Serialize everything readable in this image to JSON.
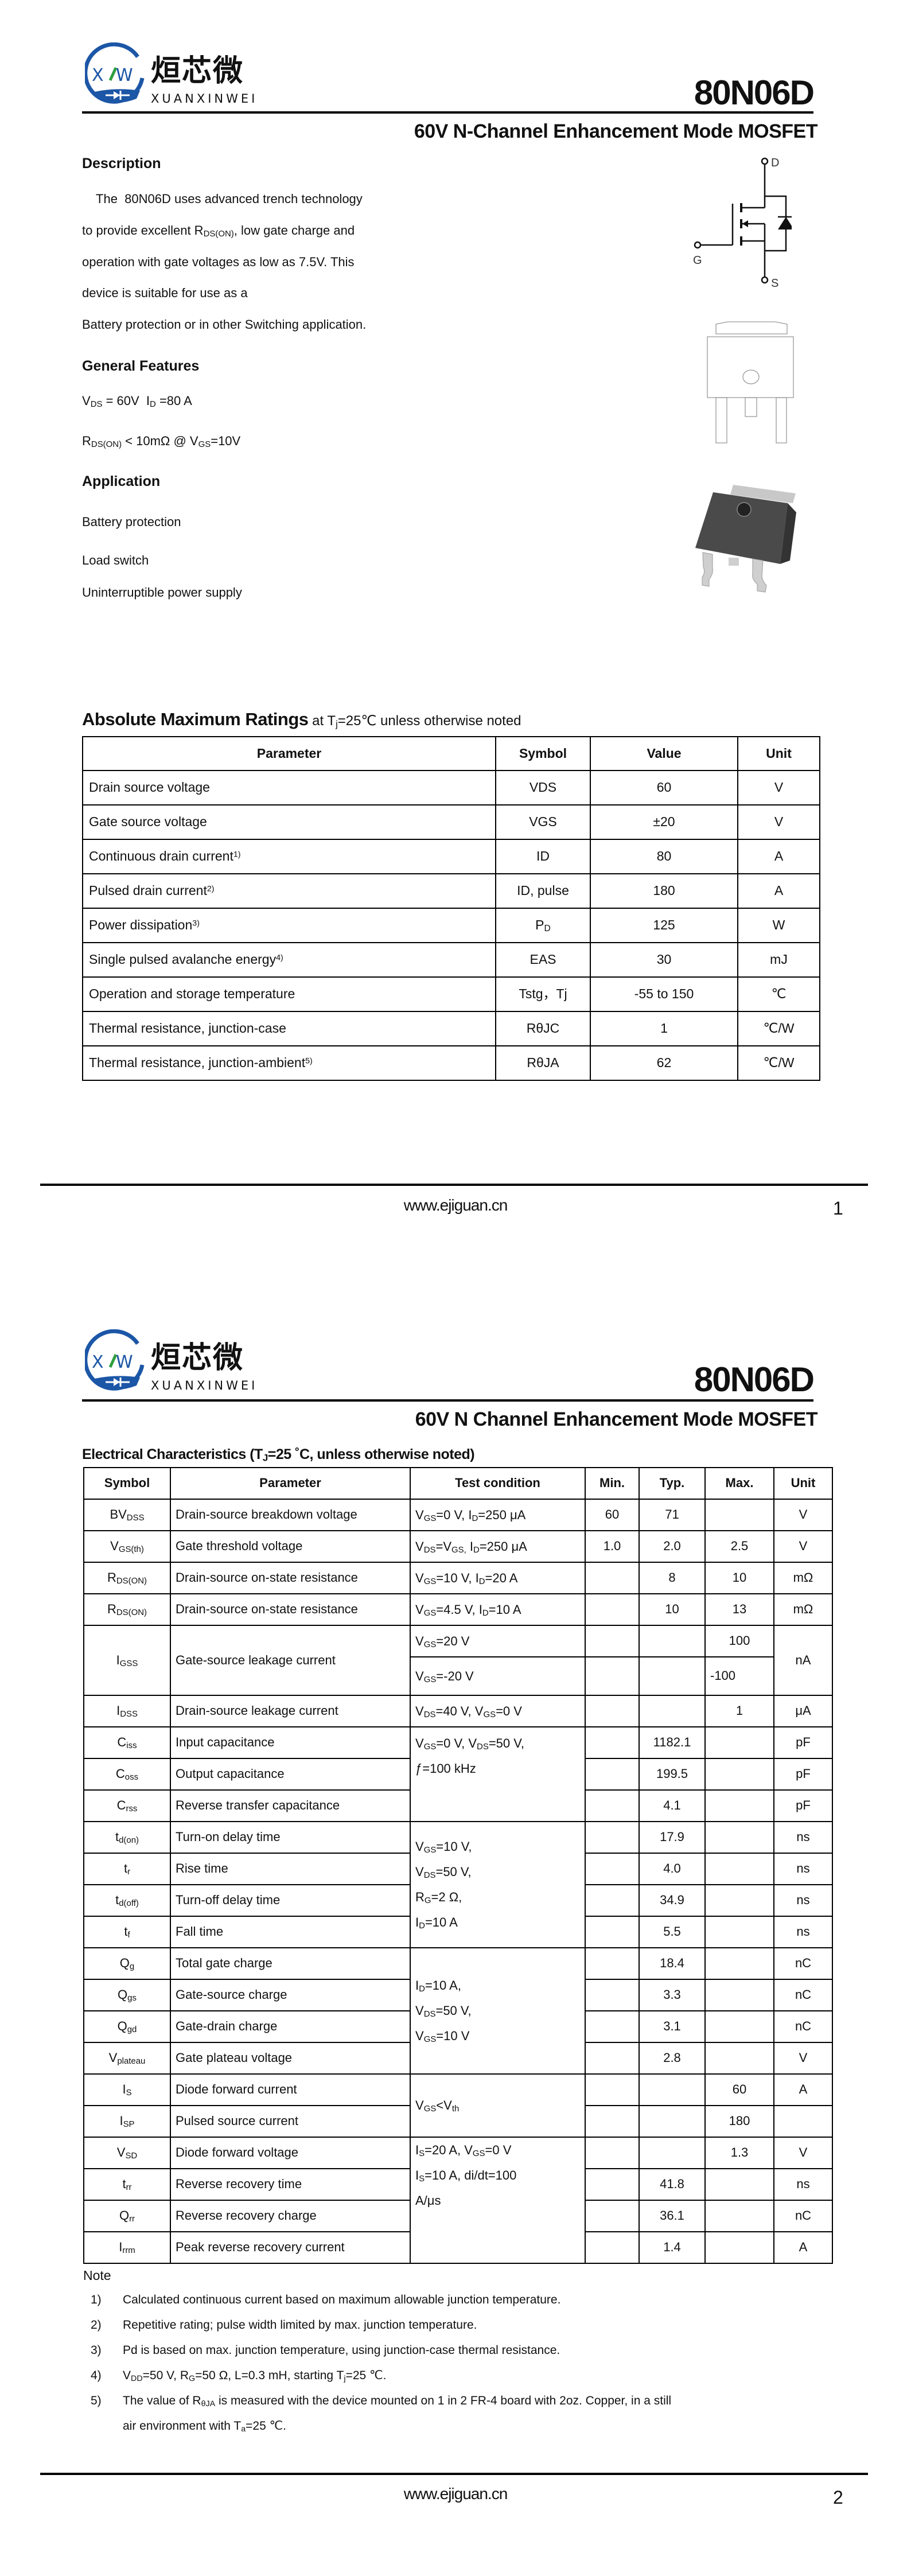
{
  "brand": {
    "logo_text_cn": "烜芯微",
    "logo_text_en": "XUANXINWEI",
    "logo_letters": "XW",
    "logo_blue": "#1c56a6",
    "logo_green": "#2f9e3e"
  },
  "pages": [
    {
      "part_number": "80N06D",
      "subtitle": "60V N-Channel Enhancement Mode MOSFET",
      "footer_url": "www.ejiguan.cn",
      "page_number": "1"
    },
    {
      "part_number": "80N06D",
      "subtitle": "60V N Channel Enhancement Mode MOSFET",
      "footer_url": "www.ejiguan.cn",
      "page_number": "2"
    }
  ],
  "description": {
    "heading": "Description",
    "lines": [
      [
        "    The  80N06D uses advanced trench technology"
      ],
      [
        "to provide excellent R",
        {
          "sub": "DS(ON)"
        },
        ", low gate charge and"
      ],
      [
        "operation with gate voltages as low as 7.5V. This"
      ],
      [
        "device is suitable for use as a"
      ],
      [
        "Battery protection or in other Switching application."
      ]
    ]
  },
  "features": {
    "heading": "General Features",
    "lines": [
      [
        "V",
        {
          "sub": "DS"
        },
        " = 60V  I",
        {
          "sub": "D"
        },
        " =80 A"
      ],
      [
        "R",
        {
          "sub": "DS(ON)"
        },
        " < 10mΩ @ V",
        {
          "sub": "GS"
        },
        "=10V"
      ]
    ]
  },
  "application": {
    "heading": "Application",
    "items": [
      "Battery protection",
      "Load switch",
      "Uninterruptible power supply"
    ]
  },
  "schematic": {
    "drain_label": "D",
    "gate_label": "G",
    "source_label": "S"
  },
  "absolute_max": {
    "title": "Absolute Maximum Ratings",
    "condition": [
      " at T",
      {
        "sub": "j"
      },
      "=25℃ unless otherwise noted"
    ],
    "headers": [
      "Parameter",
      "Symbol",
      "Value",
      "Unit"
    ],
    "rows": [
      {
        "param": [
          "Drain source voltage"
        ],
        "symbol": [
          "VDS"
        ],
        "value": "60",
        "unit": "V"
      },
      {
        "param": [
          "Gate source voltage"
        ],
        "symbol": [
          "VGS"
        ],
        "value": "±20",
        "unit": "V"
      },
      {
        "param": [
          "Continuous drain current",
          {
            "sup": "1)"
          }
        ],
        "symbol": [
          "ID"
        ],
        "value": "80",
        "unit": "A"
      },
      {
        "param": [
          "Pulsed drain current",
          {
            "sup": "2)"
          }
        ],
        "symbol": [
          "ID, pulse"
        ],
        "value": "180",
        "unit": "A"
      },
      {
        "param": [
          "Power dissipation",
          {
            "sup": "3)"
          }
        ],
        "symbol": [
          "P",
          {
            "sub": "D"
          }
        ],
        "value": "125",
        "unit": "W"
      },
      {
        "param": [
          "Single pulsed avalanche energy",
          {
            "sup": "4)"
          }
        ],
        "symbol": [
          "EAS"
        ],
        "value": "30",
        "unit": "mJ"
      },
      {
        "param": [
          "Operation and storage temperature"
        ],
        "symbol": [
          "Tstg，Tj"
        ],
        "value": "-55 to 150",
        "unit": "℃"
      },
      {
        "param": [
          "Thermal resistance, junction-case"
        ],
        "symbol": [
          "RθJC"
        ],
        "value": "1",
        "unit": "℃/W"
      },
      {
        "param": [
          "Thermal resistance, junction-ambient",
          {
            "sup": "5)"
          }
        ],
        "symbol": [
          "RθJA"
        ],
        "value": "62",
        "unit": "℃/W"
      }
    ]
  },
  "electrical": {
    "title": [
      "Electrical Characteristics (T",
      {
        "sub": "J"
      },
      "=25 ˚C, unless otherwise noted)"
    ],
    "headers": [
      "Symbol",
      "Parameter",
      "Test condition",
      "Min.",
      "Typ.",
      "Max.",
      "Unit"
    ],
    "rows": [
      {
        "symbol": [
          "BV",
          {
            "sub": "DSS"
          }
        ],
        "param": "Drain-source breakdown voltage",
        "cond": [
          [
            "V",
            {
              "sub": "GS"
            },
            "=0 V, I",
            {
              "sub": "D"
            },
            "=250 μA"
          ]
        ],
        "min": "60",
        "typ": "71",
        "max": "",
        "unit": "V"
      },
      {
        "symbol": [
          "V",
          {
            "sub": "GS(th)"
          }
        ],
        "param": "Gate threshold voltage",
        "cond": [
          [
            "V",
            {
              "sub": "DS"
            },
            "=V",
            {
              "sub": "GS,"
            },
            " I",
            {
              "sub": "D"
            },
            "=250 μA"
          ]
        ],
        "min": "1.0",
        "typ": "2.0",
        "max": "2.5",
        "unit": "V"
      },
      {
        "symbol": [
          "R",
          {
            "sub": "DS(ON)"
          }
        ],
        "param": "Drain-source on-state resistance",
        "cond": [
          [
            "V",
            {
              "sub": "GS"
            },
            "=10 V, I",
            {
              "sub": "D"
            },
            "=20 A"
          ]
        ],
        "min": "",
        "typ": "8",
        "max": "10",
        "unit": "mΩ"
      },
      {
        "symbol": [
          "R",
          {
            "sub": "DS(ON)"
          }
        ],
        "param": "Drain-source on-state resistance",
        "cond": [
          [
            "V",
            {
              "sub": "GS"
            },
            "=4.5 V, I",
            {
              "sub": "D"
            },
            "=10 A"
          ]
        ],
        "min": "",
        "typ": "10",
        "max": "13",
        "unit": "mΩ"
      },
      {
        "symbol": [
          "I",
          {
            "sub": "GSS"
          }
        ],
        "param": "Gate-source leakage current",
        "unit": "nA",
        "sub_rows": [
          {
            "cond": [
              [
                "V",
                {
                  "sub": "GS"
                },
                "=20 V"
              ]
            ],
            "min": "",
            "typ": "",
            "max": "100"
          },
          {
            "cond": [
              [
                "V",
                {
                  "sub": "GS"
                },
                "=-20 V"
              ]
            ],
            "min": "",
            "typ": "",
            "max": "-100"
          }
        ]
      },
      {
        "symbol": [
          "I",
          {
            "sub": "DSS"
          }
        ],
        "param": "Drain-source leakage current",
        "cond": [
          [
            "V",
            {
              "sub": "DS"
            },
            "=40 V, V",
            {
              "sub": "GS"
            },
            "=0 V"
          ]
        ],
        "min": "",
        "typ": "",
        "max": "1",
        "unit": "μA"
      },
      {
        "symbol": [
          "C",
          {
            "sub": "iss"
          }
        ],
        "param": "Input capacitance",
        "cond": [
          [
            "V",
            {
              "sub": "GS"
            },
            "=0 V,  V",
            {
              "sub": "DS"
            },
            "=50 V,"
          ],
          [
            "ƒ=100 kHz"
          ]
        ],
        "min": "",
        "typ": "1182.1",
        "max": "",
        "unit": "pF"
      },
      {
        "symbol": [
          "C",
          {
            "sub": "oss"
          }
        ],
        "param": "Output capacitance",
        "min": "",
        "typ": "199.5",
        "max": "",
        "unit": "pF"
      },
      {
        "symbol": [
          "C",
          {
            "sub": "rss"
          }
        ],
        "param": "Reverse transfer capacitance",
        "min": "",
        "typ": "4.1",
        "max": "",
        "unit": "pF"
      },
      {
        "symbol": [
          "t",
          {
            "sub": "d(on)"
          }
        ],
        "param": "Turn-on delay time",
        "cond": [
          [
            "V",
            {
              "sub": "GS"
            },
            "=10 V,"
          ],
          [
            "V",
            {
              "sub": "DS"
            },
            "=50 V,"
          ],
          [
            "R",
            {
              "sub": "G"
            },
            "=2 Ω,"
          ],
          [
            "I",
            {
              "sub": "D"
            },
            "=10 A"
          ]
        ],
        "min": "",
        "typ": "17.9",
        "max": "",
        "unit": "ns"
      },
      {
        "symbol": [
          "t",
          {
            "sub": "r"
          }
        ],
        "param": "Rise time",
        "min": "",
        "typ": "4.0",
        "max": "",
        "unit": "ns"
      },
      {
        "symbol": [
          "t",
          {
            "sub": "d(off)"
          }
        ],
        "param": "Turn-off delay time",
        "min": "",
        "typ": "34.9",
        "max": "",
        "unit": "ns"
      },
      {
        "symbol": [
          "t",
          {
            "sub": "f"
          }
        ],
        "param": "Fall time",
        "min": "",
        "typ": "5.5",
        "max": "",
        "unit": "ns"
      },
      {
        "symbol": [
          "Q",
          {
            "sub": "g"
          }
        ],
        "param": "Total gate charge",
        "cond": [
          [
            "I",
            {
              "sub": "D"
            },
            "=10 A,"
          ],
          [
            "V",
            {
              "sub": "DS"
            },
            "=50 V,"
          ],
          [
            "V",
            {
              "sub": "GS"
            },
            "=10 V"
          ]
        ],
        "min": "",
        "typ": "18.4",
        "max": "",
        "unit": "nC"
      },
      {
        "symbol": [
          "Q",
          {
            "sub": "gs"
          }
        ],
        "param": "Gate-source charge",
        "min": "",
        "typ": "3.3",
        "max": "",
        "unit": "nC"
      },
      {
        "symbol": [
          "Q",
          {
            "sub": "gd"
          }
        ],
        "param": "Gate-drain charge",
        "min": "",
        "typ": "3.1",
        "max": "",
        "unit": "nC"
      },
      {
        "symbol": [
          "V",
          {
            "sub": "plateau"
          }
        ],
        "param": "Gate plateau voltage",
        "min": "",
        "typ": "2.8",
        "max": "",
        "unit": "V"
      },
      {
        "symbol": [
          "I",
          {
            "sub": "S"
          }
        ],
        "param": "Diode forward current",
        "cond": [
          [
            "V",
            {
              "sub": "GS"
            },
            "<V",
            {
              "sub": "th"
            }
          ]
        ],
        "min": "",
        "typ": "",
        "max": "60",
        "unit": "A"
      },
      {
        "symbol": [
          "I",
          {
            "sub": "SP"
          }
        ],
        "param": "Pulsed source current",
        "min": "",
        "typ": "",
        "max": "180",
        "unit": ""
      },
      {
        "symbol": [
          "V",
          {
            "sub": "SD"
          }
        ],
        "param": "Diode forward voltage",
        "cond": [
          [
            "I",
            {
              "sub": "S"
            },
            "=20 A, V",
            {
              "sub": "GS"
            },
            "=0 V"
          ],
          [
            "I",
            {
              "sub": "S"
            },
            "=10 A,  di/dt=100"
          ],
          [
            "A/μs"
          ]
        ],
        "min": "",
        "typ": "",
        "max": "1.3",
        "unit": "V"
      },
      {
        "symbol": [
          "t",
          {
            "sub": "rr"
          }
        ],
        "param": "Reverse recovery time",
        "min": "",
        "typ": "41.8",
        "max": "",
        "unit": "ns"
      },
      {
        "symbol": [
          "Q",
          {
            "sub": "rr"
          }
        ],
        "param": "Reverse recovery charge",
        "min": "",
        "typ": "36.1",
        "max": "",
        "unit": "nC"
      },
      {
        "symbol": [
          "I",
          {
            "sub": "rrm"
          }
        ],
        "param": "Peak reverse recovery current",
        "min": "",
        "typ": "1.4",
        "max": "",
        "unit": "A"
      }
    ]
  },
  "notes": {
    "heading": "Note",
    "items": [
      {
        "num": "1)",
        "lines": [
          [
            "Calculated continuous current based on maximum allowable junction temperature."
          ]
        ]
      },
      {
        "num": "2)",
        "lines": [
          [
            "Repetitive rating; pulse width limited by max. junction temperature."
          ]
        ]
      },
      {
        "num": "3)",
        "lines": [
          [
            "Pd is based on max. junction temperature, using junction-case thermal resistance."
          ]
        ]
      },
      {
        "num": "4)",
        "lines": [
          [
            "V",
            {
              "sub": "DD"
            },
            "=50 V, R",
            {
              "sub": "G"
            },
            "=50 Ω, L=0.3 mH, starting T",
            {
              "sub": "j"
            },
            "=25 ℃."
          ]
        ]
      },
      {
        "num": "5)",
        "lines": [
          [
            "The value of R",
            {
              "sub": "θJA"
            },
            " is measured with the device mounted on 1 in 2 FR-4 board with 2oz. Copper, in a still"
          ],
          [
            "air environment with T",
            {
              "sub": "a"
            },
            "=25 ℃."
          ]
        ]
      }
    ]
  }
}
